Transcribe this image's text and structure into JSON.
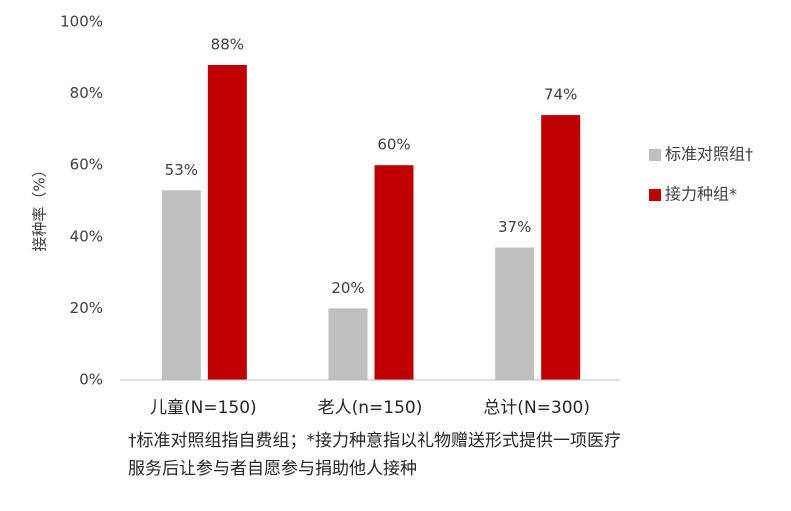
{
  "chart_data": {
    "type": "bar",
    "y_label": "接种率（%）",
    "categories": [
      "儿童(N=150)",
      "老人(n=150)",
      "总计(N=300)"
    ],
    "series": [
      {
        "name": "标准对照组†",
        "color": "#bfbfbf",
        "values": [
          53,
          20,
          37
        ],
        "value_labels": [
          "53%",
          "20%",
          "37%"
        ]
      },
      {
        "name": "接力种组*",
        "color": "#c00000",
        "values": [
          88,
          60,
          74
        ],
        "value_labels": [
          "88%",
          "60%",
          "74%"
        ]
      }
    ],
    "ylim": [
      0,
      100
    ],
    "yticks": [
      {
        "value": 0,
        "label": "0%"
      },
      {
        "value": 20,
        "label": "20%"
      },
      {
        "value": 40,
        "label": "40%"
      },
      {
        "value": 60,
        "label": "60%"
      },
      {
        "value": 80,
        "label": "80%"
      },
      {
        "value": 100,
        "label": "100%"
      }
    ],
    "grid": false,
    "legend": "right",
    "notes": [
      "†标准对照组指自费组；*接力种意指以礼物赠送形式提供一项医疗",
      "服务后让参与者自愿参与捐助他人接种"
    ]
  }
}
